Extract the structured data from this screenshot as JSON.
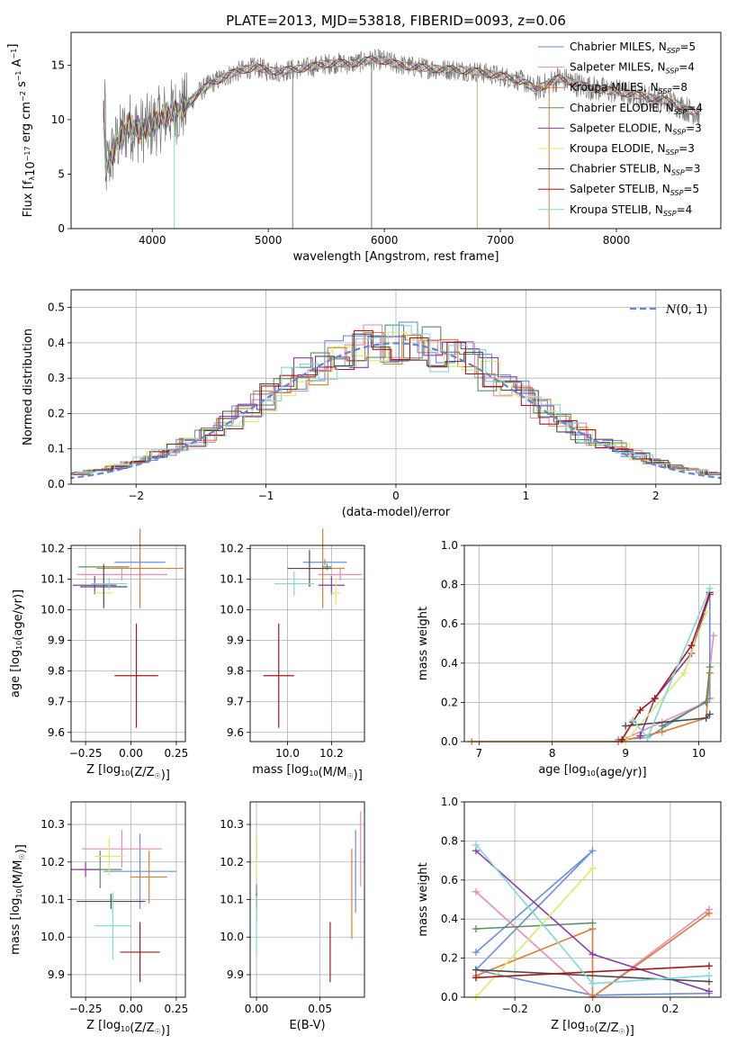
{
  "colors": {
    "Chabrier MILES": "#6b8fd6",
    "Salpeter MILES": "#e98ab9",
    "Kroupa MILES": "#de7a31",
    "Chabrier ELODIE": "#5d8d5f",
    "Salpeter ELODIE": "#8e3aa6",
    "Kroupa ELODIE": "#d8ec66",
    "Chabrier STELIB": "#4d4d4d",
    "Salpeter STELIB": "#a31919",
    "Kroupa STELIB": "#7fd9d9",
    "normal": "#5f87d4"
  },
  "chart_data": [
    {
      "id": "spectrum",
      "type": "line",
      "title": "PLATE=2013, MJD=53818, FIBERID=0093, z=0.06",
      "xlabel": "wavelength [Angstrom, rest frame]",
      "ylabel": "Flux [fλ10⁻¹⁷ erg cm⁻² s⁻¹ A⁻¹]",
      "xlim": [
        3300,
        8900
      ],
      "ylim": [
        0,
        18
      ],
      "xticks": [
        "4000",
        "5000",
        "6000",
        "7000",
        "8000"
      ],
      "yticks": [
        "0",
        "5",
        "10",
        "15"
      ],
      "grid": false,
      "legend_position": "right",
      "series_shape": [
        [
          3600,
          5.5
        ],
        [
          3700,
          8
        ],
        [
          3800,
          9.5
        ],
        [
          3900,
          9
        ],
        [
          4000,
          9.5
        ],
        [
          4100,
          10.3
        ],
        [
          4200,
          10.8
        ],
        [
          4300,
          11.3
        ],
        [
          4400,
          12.5
        ],
        [
          4500,
          13.3
        ],
        [
          4600,
          13.8
        ],
        [
          4700,
          14.3
        ],
        [
          4800,
          14.6
        ],
        [
          4900,
          14.8
        ],
        [
          5000,
          14.5
        ],
        [
          5100,
          14.4
        ],
        [
          5200,
          14.6
        ],
        [
          5300,
          14.7
        ],
        [
          5400,
          14.9
        ],
        [
          5500,
          15.1
        ],
        [
          5600,
          15.2
        ],
        [
          5700,
          15.1
        ],
        [
          5800,
          15.3
        ],
        [
          5900,
          15.5
        ],
        [
          6000,
          15.4
        ],
        [
          6100,
          15.1
        ],
        [
          6200,
          14.9
        ],
        [
          6300,
          14.8
        ],
        [
          6400,
          14.7
        ],
        [
          6500,
          14.6
        ],
        [
          6600,
          14.6
        ],
        [
          6700,
          14.5
        ],
        [
          6800,
          14.4
        ],
        [
          6900,
          14.2
        ],
        [
          7000,
          14.0
        ],
        [
          7100,
          13.8
        ],
        [
          7200,
          13.5
        ],
        [
          7300,
          12.8
        ],
        [
          7400,
          13.2
        ],
        [
          7500,
          13.8
        ],
        [
          7600,
          13.5
        ],
        [
          7700,
          13.1
        ],
        [
          7800,
          12.9
        ],
        [
          7900,
          12.7
        ],
        [
          8000,
          12.6
        ],
        [
          8100,
          12.4
        ],
        [
          8200,
          12.2
        ],
        [
          8300,
          12.0
        ],
        [
          8400,
          11.8
        ],
        [
          8500,
          11.5
        ],
        [
          8600,
          11.0
        ],
        [
          8700,
          10.5
        ]
      ],
      "series": [
        {
          "name": "Chabrier MILES",
          "nssp": "5"
        },
        {
          "name": "Salpeter MILES",
          "nssp": "4"
        },
        {
          "name": "Kroupa MILES",
          "nssp": "8"
        },
        {
          "name": "Chabrier ELODIE",
          "nssp": "4"
        },
        {
          "name": "Salpeter ELODIE",
          "nssp": "3"
        },
        {
          "name": "Kroupa ELODIE",
          "nssp": "3"
        },
        {
          "name": "Chabrier STELIB",
          "nssp": "3"
        },
        {
          "name": "Salpeter STELIB",
          "nssp": "5"
        },
        {
          "name": "Kroupa STELIB",
          "nssp": "4"
        }
      ]
    },
    {
      "id": "residuals",
      "type": "histogram",
      "xlabel": "(data-model)/error",
      "ylabel": "Normed distribution",
      "xlim": [
        -2.5,
        2.5
      ],
      "ylim": [
        0,
        0.55
      ],
      "xticks": [
        "−2",
        "−1",
        "0",
        "1",
        "2"
      ],
      "yticks": [
        "0.0",
        "0.1",
        "0.2",
        "0.3",
        "0.4",
        "0.5"
      ],
      "grid": true,
      "legend": "N(0, 1)",
      "legend_position": "top-right",
      "bin_edges_range": [
        -2.5,
        2.5
      ],
      "bins": 35,
      "normal_curve": {
        "mu": 0,
        "sigma": 1
      }
    },
    {
      "id": "age_vs_z",
      "type": "errorbar",
      "xlabel": "Z [log10(Z/Z☉)]",
      "ylabel": "age  [log10(age/yr)]",
      "xlim": [
        -0.33,
        0.3
      ],
      "ylim": [
        9.57,
        10.21
      ],
      "xticks": [
        "−0.25",
        "0.00",
        "0.25"
      ],
      "yticks": [
        "9.6",
        "9.7",
        "9.8",
        "9.9",
        "10.0",
        "10.1",
        "10.2"
      ],
      "grid": true,
      "points": [
        {
          "series": "Chabrier MILES",
          "x": 0.05,
          "y": 10.155,
          "xerr": 0.14,
          "yerr": 0.01
        },
        {
          "series": "Salpeter MILES",
          "x": -0.05,
          "y": 10.115,
          "xerr": 0.25,
          "yerr": 0.02
        },
        {
          "series": "Kroupa MILES",
          "x": 0.05,
          "y": 10.135,
          "xerr": 0.24,
          "yerr": 0.13
        },
        {
          "series": "Chabrier ELODIE",
          "x": -0.15,
          "y": 10.14,
          "xerr": 0.14,
          "yerr": 0.01
        },
        {
          "series": "Salpeter ELODIE",
          "x": -0.2,
          "y": 10.08,
          "xerr": 0.12,
          "yerr": 0.03
        },
        {
          "series": "Kroupa ELODIE",
          "x": -0.15,
          "y": 10.055,
          "xerr": 0.05,
          "yerr": 0.04
        },
        {
          "series": "Chabrier STELIB",
          "x": -0.15,
          "y": 10.075,
          "xerr": 0.13,
          "yerr": 0.07
        },
        {
          "series": "Salpeter STELIB",
          "x": 0.03,
          "y": 9.785,
          "xerr": 0.12,
          "yerr": 0.17
        },
        {
          "series": "Kroupa STELIB",
          "x": -0.12,
          "y": 10.085,
          "xerr": 0.1,
          "yerr": 0.02
        }
      ]
    },
    {
      "id": "age_vs_mass",
      "type": "errorbar",
      "xlabel": "mass [log10(M/M☉)]",
      "ylabel": "",
      "xlim": [
        9.83,
        10.35
      ],
      "ylim": [
        9.57,
        10.21
      ],
      "xticks": [
        "10.0",
        "10.2"
      ],
      "yticks": [
        "9.6",
        "9.7",
        "9.8",
        "9.9",
        "10.0",
        "10.1",
        "10.2"
      ],
      "grid": true,
      "points": [
        {
          "series": "Chabrier MILES",
          "x": 10.17,
          "y": 10.155,
          "xerr": 0.1,
          "yerr": 0.01
        },
        {
          "series": "Salpeter MILES",
          "x": 10.24,
          "y": 10.115,
          "xerr": 0.1,
          "yerr": 0.02
        },
        {
          "series": "Kroupa MILES",
          "x": 10.16,
          "y": 10.135,
          "xerr": 0.1,
          "yerr": 0.13
        },
        {
          "series": "Chabrier ELODIE",
          "x": 10.18,
          "y": 10.14,
          "xerr": 0.02,
          "yerr": 0.01
        },
        {
          "series": "Salpeter ELODIE",
          "x": 10.2,
          "y": 10.08,
          "xerr": 0.06,
          "yerr": 0.03
        },
        {
          "series": "Kroupa ELODIE",
          "x": 10.22,
          "y": 10.055,
          "xerr": 0.02,
          "yerr": 0.04
        },
        {
          "series": "Chabrier STELIB",
          "x": 10.1,
          "y": 10.135,
          "xerr": 0.1,
          "yerr": 0.06
        },
        {
          "series": "Salpeter STELIB",
          "x": 9.96,
          "y": 9.785,
          "xerr": 0.07,
          "yerr": 0.17
        },
        {
          "series": "Kroupa STELIB",
          "x": 10.03,
          "y": 10.085,
          "xerr": 0.09,
          "yerr": 0.04
        }
      ]
    },
    {
      "id": "weight_vs_age",
      "type": "line",
      "xlabel": "age  [log10(age/yr)]",
      "ylabel": "mass weight",
      "xlim": [
        6.8,
        10.3
      ],
      "ylim": [
        0,
        1
      ],
      "xticks": [
        "7",
        "8",
        "9",
        "10"
      ],
      "yticks": [
        "0.0",
        "0.2",
        "0.4",
        "0.6",
        "0.8",
        "1.0"
      ],
      "grid": true,
      "series": [
        {
          "name": "Chabrier MILES",
          "x": [
            8.9,
            9.3,
            10.15,
            10.15
          ],
          "y": [
            0.01,
            0.02,
            0.22,
            0.75
          ]
        },
        {
          "name": "Salpeter MILES",
          "x": [
            8.9,
            9.5,
            10.1,
            10.2
          ],
          "y": [
            0.0,
            0.1,
            0.2,
            0.54
          ]
        },
        {
          "name": "Kroupa MILES",
          "x": [
            6.9,
            8.9,
            9.5,
            10.1,
            10.15
          ],
          "y": [
            0.0,
            0.0,
            0.05,
            0.12,
            0.35
          ]
        },
        {
          "name": "Chabrier ELODIE",
          "x": [
            9.5,
            10.1,
            10.15
          ],
          "y": [
            0.08,
            0.2,
            0.38
          ]
        },
        {
          "name": "Salpeter ELODIE",
          "x": [
            9.2,
            9.4,
            9.9,
            10.15
          ],
          "y": [
            0.03,
            0.22,
            0.45,
            0.75
          ]
        },
        {
          "name": "Kroupa ELODIE",
          "x": [
            9.0,
            9.8,
            10.1
          ],
          "y": [
            0.0,
            0.35,
            0.66
          ]
        },
        {
          "name": "Chabrier STELIB",
          "x": [
            9.0,
            10.1,
            10.15
          ],
          "y": [
            0.08,
            0.12,
            0.14
          ]
        },
        {
          "name": "Salpeter STELIB",
          "x": [
            8.95,
            9.1,
            9.2,
            9.4,
            9.9,
            10.15
          ],
          "y": [
            0.01,
            0.1,
            0.16,
            0.22,
            0.49,
            0.76
          ]
        },
        {
          "name": "Kroupa STELIB",
          "x": [
            9.1,
            9.3,
            10.15
          ],
          "y": [
            0.11,
            0.02,
            0.78
          ]
        }
      ]
    },
    {
      "id": "mass_vs_z",
      "type": "errorbar",
      "xlabel": "Z [log10(Z/Z☉)]",
      "ylabel": "mass [log10(M/M☉)]",
      "xlim": [
        -0.33,
        0.3
      ],
      "ylim": [
        9.84,
        10.36
      ],
      "xticks": [
        "−0.25",
        "0.00",
        "0.25"
      ],
      "yticks": [
        "9.9",
        "10.0",
        "10.1",
        "10.2",
        "10.3"
      ],
      "grid": true,
      "points": [
        {
          "series": "Chabrier MILES",
          "x": 0.05,
          "y": 10.175,
          "xerr": 0.2,
          "yerr": 0.1
        },
        {
          "series": "Salpeter MILES",
          "x": -0.05,
          "y": 10.235,
          "xerr": 0.22,
          "yerr": 0.05
        },
        {
          "series": "Kroupa MILES",
          "x": 0.1,
          "y": 10.16,
          "xerr": 0.1,
          "yerr": 0.07
        },
        {
          "series": "Chabrier ELODIE",
          "x": -0.17,
          "y": 10.18,
          "xerr": 0.12,
          "yerr": 0.05
        },
        {
          "series": "Salpeter ELODIE",
          "x": -0.25,
          "y": 10.18,
          "xerr": 0.08,
          "yerr": 0.02
        },
        {
          "series": "Kroupa ELODIE",
          "x": -0.12,
          "y": 10.215,
          "xerr": 0.08,
          "yerr": 0.05
        },
        {
          "series": "Chabrier STELIB",
          "x": -0.11,
          "y": 10.095,
          "xerr": 0.19,
          "yerr": 0.02
        },
        {
          "series": "Salpeter STELIB",
          "x": 0.05,
          "y": 9.96,
          "xerr": 0.11,
          "yerr": 0.08
        },
        {
          "series": "Kroupa STELIB",
          "x": -0.1,
          "y": 10.03,
          "xerr": 0.1,
          "yerr": 0.09
        }
      ]
    },
    {
      "id": "mass_vs_ebv",
      "type": "errorbar",
      "xlabel": "E(B-V)",
      "ylabel": "",
      "xlim": [
        -0.005,
        0.085
      ],
      "ylim": [
        9.84,
        10.36
      ],
      "xticks": [
        "0.00",
        "0.05"
      ],
      "yticks": [
        "9.9",
        "10.0",
        "10.1",
        "10.2",
        "10.3"
      ],
      "grid": true,
      "points": [
        {
          "series": "Chabrier MILES",
          "x": 0.078,
          "y": 10.175,
          "yerr": 0.11
        },
        {
          "series": "Salpeter MILES",
          "x": 0.082,
          "y": 10.235,
          "yerr": 0.1
        },
        {
          "series": "Kroupa MILES",
          "x": 0.075,
          "y": 10.115,
          "yerr": 0.12
        },
        {
          "series": "Chabrier ELODIE",
          "x": 0.0,
          "y": 10.09,
          "yerr": 0.05
        },
        {
          "series": "Salpeter ELODIE",
          "x": 0.0,
          "y": 10.235,
          "yerr": 0.03
        },
        {
          "series": "Kroupa ELODIE",
          "x": 0.0,
          "y": 10.215,
          "yerr": 0.05
        },
        {
          "series": "Chabrier STELIB",
          "x": 0.0,
          "y": 10.095,
          "yerr": 0.02
        },
        {
          "series": "Salpeter STELIB",
          "x": 0.058,
          "y": 9.96,
          "yerr": 0.08
        },
        {
          "series": "Kroupa STELIB",
          "x": 0.0,
          "y": 10.03,
          "yerr": 0.08
        }
      ]
    },
    {
      "id": "weight_vs_z",
      "type": "line",
      "xlabel": "Z [log10(Z/Z☉)]",
      "ylabel": "mass weight",
      "xlim": [
        -0.33,
        0.33
      ],
      "ylim": [
        0,
        1
      ],
      "xticks": [
        "−0.2",
        "0.0",
        "0.2"
      ],
      "yticks": [
        "0.0",
        "0.2",
        "0.4",
        "0.6",
        "0.8",
        "1.0"
      ],
      "grid": true,
      "series": [
        {
          "name": "Chabrier MILES",
          "x": [
            -0.3,
            0.0,
            -0.3,
            0.0,
            0.3
          ],
          "y": [
            0.23,
            0.75,
            0.14,
            0.01,
            0.02
          ]
        },
        {
          "name": "Salpeter MILES",
          "x": [
            -0.3,
            0.0,
            0.3
          ],
          "y": [
            0.54,
            0.0,
            0.45
          ]
        },
        {
          "name": "Kroupa MILES",
          "x": [
            -0.3,
            0.0,
            0.0,
            0.3
          ],
          "y": [
            0.11,
            0.35,
            0.0,
            0.43
          ]
        },
        {
          "name": "Chabrier ELODIE",
          "x": [
            -0.3,
            0.0
          ],
          "y": [
            0.35,
            0.38
          ]
        },
        {
          "name": "Salpeter ELODIE",
          "x": [
            -0.3,
            0.0,
            0.3
          ],
          "y": [
            0.75,
            0.22,
            0.03
          ]
        },
        {
          "name": "Kroupa ELODIE",
          "x": [
            -0.3,
            0.0
          ],
          "y": [
            0.0,
            0.66
          ]
        },
        {
          "name": "Chabrier STELIB",
          "x": [
            -0.3,
            0.3
          ],
          "y": [
            0.14,
            0.08
          ]
        },
        {
          "name": "Salpeter STELIB",
          "x": [
            -0.3,
            0.3
          ],
          "y": [
            0.1,
            0.16
          ]
        },
        {
          "name": "Kroupa STELIB",
          "x": [
            -0.3,
            0.0,
            0.3
          ],
          "y": [
            0.78,
            0.07,
            0.11
          ]
        }
      ]
    }
  ]
}
